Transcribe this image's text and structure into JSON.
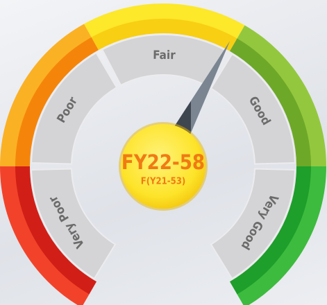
{
  "gauge": {
    "segments": [
      {
        "label": "Very Poor"
      },
      {
        "label": "Poor"
      },
      {
        "label": "Fair"
      },
      {
        "label": "Good"
      },
      {
        "label": "Very Good"
      }
    ],
    "score": {
      "current": "FY22-58",
      "previous": "F(Y21-53)"
    }
  }
}
